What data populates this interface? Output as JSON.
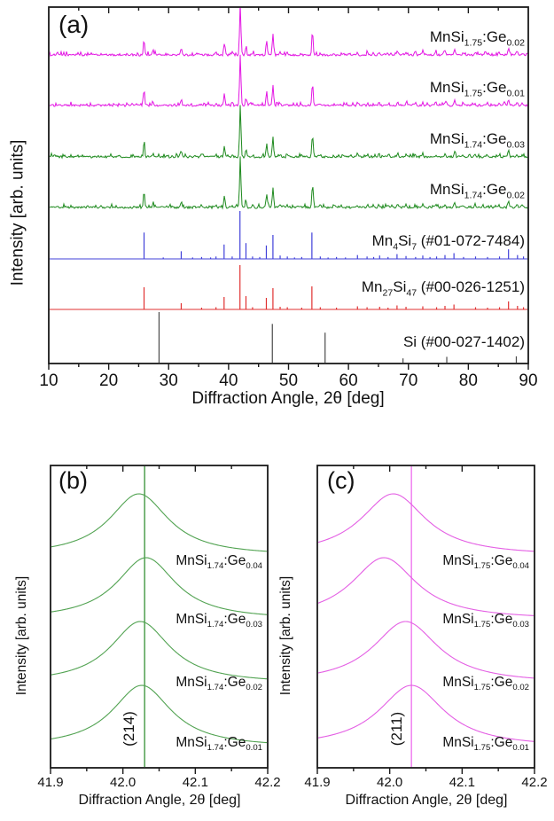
{
  "colors": {
    "axis": "#1a1a1a",
    "magenta_trace": "#e316e3",
    "green_trace": "#1e8a1e",
    "blue_reference": "#4040d9",
    "red_reference": "#e03030",
    "si_reference": "#4a4a4a",
    "panel_b_curve": "#52a352",
    "panel_b_refline": "#4f9f4f",
    "panel_c_curve": "#e45fe4",
    "panel_c_refline": "#f07ff0"
  },
  "chart_data": [
    {
      "type": "line",
      "panel_label": "(a)",
      "xlabel": "Diffraction Angle, 2θ [deg]",
      "ylabel": "Intensity [arb. units]",
      "xlim": [
        10,
        90
      ],
      "xticks": [
        10,
        20,
        30,
        40,
        50,
        60,
        70,
        80,
        90
      ],
      "minor_tick_step": 5,
      "grid": false,
      "peak_fwhm_deg": 0.26,
      "sample_peaks": [
        [
          25.9,
          0.3
        ],
        [
          27.4,
          0.07
        ],
        [
          32.1,
          0.12
        ],
        [
          35.4,
          0.03
        ],
        [
          37.9,
          0.04
        ],
        [
          39.3,
          0.22
        ],
        [
          40.6,
          0.05
        ],
        [
          41.95,
          1.0
        ],
        [
          42.9,
          0.15
        ],
        [
          44.0,
          0.04
        ],
        [
          46.35,
          0.27
        ],
        [
          47.4,
          0.4
        ],
        [
          48.6,
          0.05
        ],
        [
          49.8,
          0.04
        ],
        [
          52.1,
          0.03
        ],
        [
          54.0,
          0.45
        ],
        [
          55.3,
          0.04
        ],
        [
          57.6,
          0.03
        ],
        [
          61.5,
          0.05
        ],
        [
          63.2,
          0.05
        ],
        [
          65.1,
          0.06
        ],
        [
          66.6,
          0.04
        ],
        [
          68.2,
          0.08
        ],
        [
          69.6,
          0.06
        ],
        [
          71.1,
          0.04
        ],
        [
          72.4,
          0.07
        ],
        [
          74.6,
          0.05
        ],
        [
          76.1,
          0.07
        ],
        [
          77.7,
          0.1
        ],
        [
          79.1,
          0.04
        ],
        [
          81.1,
          0.05
        ],
        [
          83.1,
          0.04
        ],
        [
          85.1,
          0.04
        ],
        [
          86.7,
          0.13
        ],
        [
          88.1,
          0.06
        ],
        [
          89.0,
          0.04
        ]
      ],
      "series": [
        {
          "label": "MnSi_{1.75}:Ge_{0.02}",
          "color": "#e316e3"
        },
        {
          "label": "MnSi_{1.75}:Ge_{0.01}",
          "color": "#e316e3"
        },
        {
          "label": "MnSi_{1.74}:Ge_{0.03}",
          "color": "#1e8a1e"
        },
        {
          "label": "MnSi_{1.74}:Ge_{0.02}",
          "color": "#1e8a1e"
        }
      ],
      "references": [
        {
          "label": "Mn_{4}Si_{7} (#01-072-7484)",
          "color": "#4040d9",
          "peaks": [
            [
              25.9,
              0.55
            ],
            [
              29.1,
              0.03
            ],
            [
              32.1,
              0.16
            ],
            [
              34.0,
              0.03
            ],
            [
              35.5,
              0.04
            ],
            [
              37.0,
              0.03
            ],
            [
              37.9,
              0.05
            ],
            [
              39.25,
              0.3
            ],
            [
              40.6,
              0.05
            ],
            [
              41.9,
              1.0
            ],
            [
              42.9,
              0.33
            ],
            [
              44.0,
              0.05
            ],
            [
              45.2,
              0.04
            ],
            [
              46.3,
              0.28
            ],
            [
              47.4,
              0.5
            ],
            [
              48.6,
              0.07
            ],
            [
              49.8,
              0.05
            ],
            [
              51.0,
              0.03
            ],
            [
              52.2,
              0.04
            ],
            [
              53.9,
              0.55
            ],
            [
              55.3,
              0.05
            ],
            [
              56.6,
              0.03
            ],
            [
              58.0,
              0.04
            ],
            [
              59.5,
              0.03
            ],
            [
              61.5,
              0.08
            ],
            [
              63.1,
              0.05
            ],
            [
              64.2,
              0.04
            ],
            [
              65.2,
              0.07
            ],
            [
              66.6,
              0.04
            ],
            [
              68.1,
              0.1
            ],
            [
              69.6,
              0.06
            ],
            [
              71.2,
              0.04
            ],
            [
              72.4,
              0.07
            ],
            [
              73.6,
              0.04
            ],
            [
              74.7,
              0.05
            ],
            [
              76.1,
              0.08
            ],
            [
              77.6,
              0.12
            ],
            [
              79.2,
              0.04
            ],
            [
              81.2,
              0.05
            ],
            [
              83.2,
              0.04
            ],
            [
              85.2,
              0.05
            ],
            [
              86.7,
              0.2
            ],
            [
              88.2,
              0.08
            ],
            [
              89.2,
              0.05
            ]
          ]
        },
        {
          "label": "Mn_{27}Si_{47} (#00-026-1251)",
          "color": "#e03030",
          "peaks": [
            [
              25.9,
              0.5
            ],
            [
              32.1,
              0.14
            ],
            [
              35.5,
              0.04
            ],
            [
              37.9,
              0.05
            ],
            [
              39.25,
              0.28
            ],
            [
              41.9,
              1.0
            ],
            [
              42.9,
              0.3
            ],
            [
              44.0,
              0.05
            ],
            [
              46.3,
              0.26
            ],
            [
              47.4,
              0.48
            ],
            [
              48.6,
              0.06
            ],
            [
              49.8,
              0.05
            ],
            [
              52.2,
              0.04
            ],
            [
              53.9,
              0.52
            ],
            [
              55.3,
              0.05
            ],
            [
              58.0,
              0.04
            ],
            [
              61.5,
              0.07
            ],
            [
              63.1,
              0.05
            ],
            [
              65.2,
              0.06
            ],
            [
              66.6,
              0.04
            ],
            [
              68.1,
              0.09
            ],
            [
              69.6,
              0.06
            ],
            [
              72.4,
              0.07
            ],
            [
              74.7,
              0.05
            ],
            [
              76.1,
              0.08
            ],
            [
              77.6,
              0.11
            ],
            [
              81.2,
              0.05
            ],
            [
              83.2,
              0.04
            ],
            [
              85.2,
              0.05
            ],
            [
              86.7,
              0.18
            ],
            [
              88.2,
              0.08
            ],
            [
              89.2,
              0.05
            ]
          ]
        },
        {
          "label": "Si (#00-027-1402)",
          "color": "#4a4a4a",
          "peaks": [
            [
              28.4,
              1.0
            ],
            [
              47.3,
              0.77
            ],
            [
              56.1,
              0.6
            ],
            [
              69.1,
              0.1
            ],
            [
              76.4,
              0.13
            ],
            [
              88.0,
              0.14
            ]
          ]
        }
      ]
    },
    {
      "type": "line",
      "panel_label": "(b)",
      "xlabel": "Diffraction Angle, 2θ [deg]",
      "ylabel": "Intensity [arb. units]",
      "xlim": [
        41.9,
        42.2
      ],
      "xticks": [
        41.9,
        42.0,
        42.1,
        42.2
      ],
      "minor_tick_step": 0.05,
      "grid": false,
      "annotation": "(214)",
      "ref_line_2theta": 42.03,
      "curve_color": "#52a352",
      "line_color": "#4f9f4f",
      "peak_fwhm_deg": 0.1,
      "series": [
        {
          "label": "MnSi_{1.74}:Ge_{0.04}",
          "peak_center": 42.022
        },
        {
          "label": "MnSi_{1.74}:Ge_{0.03}",
          "peak_center": 42.032
        },
        {
          "label": "MnSi_{1.74}:Ge_{0.02}",
          "peak_center": 42.024
        },
        {
          "label": "MnSi_{1.74}:Ge_{0.01}",
          "peak_center": 42.026
        }
      ]
    },
    {
      "type": "line",
      "panel_label": "(c)",
      "xlabel": "Diffraction Angle, 2θ [deg]",
      "ylabel": "Intensity [arb. units]",
      "xlim": [
        41.9,
        42.2
      ],
      "xticks": [
        41.9,
        42.0,
        42.1,
        42.2
      ],
      "minor_tick_step": 0.05,
      "grid": false,
      "annotation": "(211)",
      "ref_line_2theta": 42.03,
      "curve_color": "#e45fe4",
      "line_color": "#f07ff0",
      "peak_fwhm_deg": 0.11,
      "series": [
        {
          "label": "MnSi_{1.75}:Ge_{0.04}",
          "peak_center": 42.005
        },
        {
          "label": "MnSi_{1.75}:Ge_{0.03}",
          "peak_center": 41.992
        },
        {
          "label": "MnSi_{1.75}:Ge_{0.02}",
          "peak_center": 42.022
        },
        {
          "label": "MnSi_{1.75}:Ge_{0.01}",
          "peak_center": 42.03
        }
      ]
    }
  ]
}
